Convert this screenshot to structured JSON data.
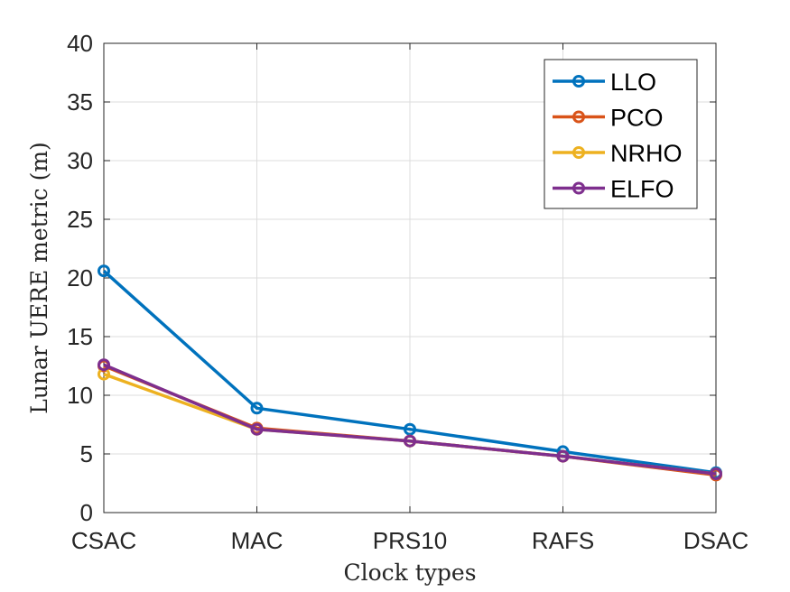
{
  "chart_data": {
    "type": "line",
    "title": "",
    "xlabel": "Clock types",
    "ylabel": "Lunar UERE metric (m)",
    "categories": [
      "CSAC",
      "MAC",
      "PRS10",
      "RAFS",
      "DSAC"
    ],
    "ylim": [
      0,
      40
    ],
    "yticks": [
      0,
      5,
      10,
      15,
      20,
      25,
      30,
      35,
      40
    ],
    "grid": true,
    "legend_position": "top-right",
    "series": [
      {
        "name": "LLO",
        "color": "#0072BD",
        "values": [
          20.6,
          8.9,
          7.1,
          5.2,
          3.4
        ]
      },
      {
        "name": "PCO",
        "color": "#D95319",
        "values": [
          12.5,
          7.2,
          6.1,
          4.8,
          3.2
        ]
      },
      {
        "name": "NRHO",
        "color": "#EDB120",
        "values": [
          11.8,
          7.1,
          6.1,
          4.8,
          3.3
        ]
      },
      {
        "name": "ELFO",
        "color": "#7E2F8E",
        "values": [
          12.6,
          7.1,
          6.1,
          4.8,
          3.3
        ]
      }
    ]
  }
}
